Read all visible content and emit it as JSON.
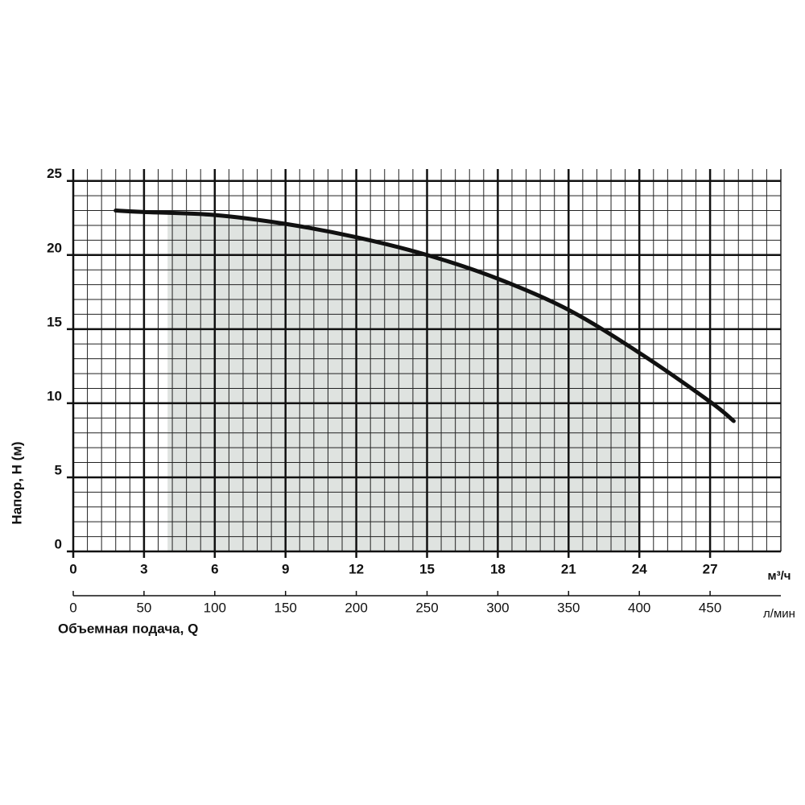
{
  "chart_data": {
    "type": "line",
    "y_label": "Напор, H (м)",
    "x_label": "Объемная подача, Q",
    "x_unit": "м³/ч",
    "x2_unit": "л/мин",
    "x": [
      1.8,
      3,
      6,
      9,
      12,
      15,
      18,
      21,
      24,
      27,
      28
    ],
    "series": [
      {
        "color": "#111111",
        "values": [
          23.0,
          22.9,
          22.7,
          22.1,
          21.2,
          20.0,
          18.4,
          16.3,
          13.4,
          10.1,
          8.8
        ]
      }
    ],
    "operating_range": [
      4,
      24
    ],
    "operating_range_color": "#dfe3e0",
    "xlim": [
      0,
      30
    ],
    "xticks": [
      0,
      3,
      6,
      9,
      12,
      15,
      18,
      21,
      24,
      27
    ],
    "x2lim": [
      0,
      500
    ],
    "x2ticks": [
      0,
      50,
      100,
      150,
      200,
      250,
      300,
      350,
      400,
      450
    ],
    "ylim": [
      0,
      25.8
    ],
    "yticks": [
      0,
      5,
      10,
      15,
      20,
      25
    ],
    "grid": true
  }
}
